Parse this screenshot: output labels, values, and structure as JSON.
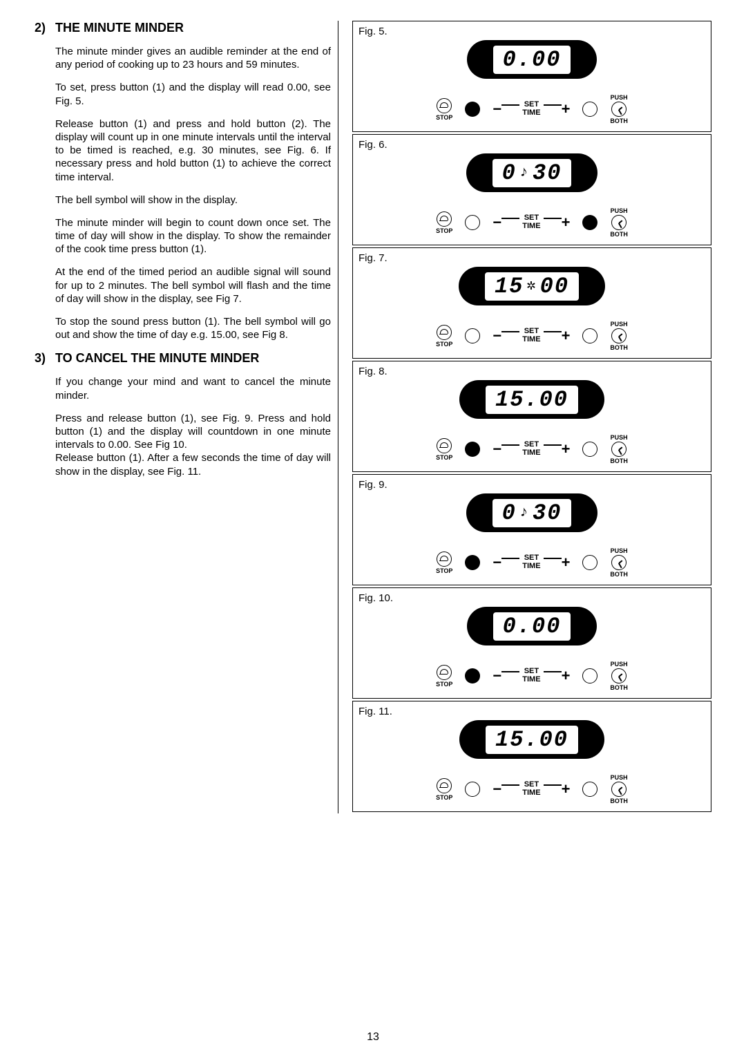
{
  "sections": [
    {
      "num": "2)",
      "title": "THE MINUTE MINDER"
    },
    {
      "num": "3)",
      "title": "TO CANCEL THE MINUTE MINDER"
    }
  ],
  "paras2": [
    "The minute minder gives an audible reminder at the end of any period of cooking up to 23 hours and 59 minutes.",
    "To set, press button (1) and the display will read 0.00, see Fig. 5.",
    "Release button (1) and press and hold button (2). The display will count up in one minute intervals until the interval to be timed is reached, e.g. 30 minutes, see Fig. 6.  If necessary press and hold button (1) to achieve the correct time interval.",
    "The bell symbol will show in the display.",
    "The minute minder will begin to count down once set.  The time of day will show in the display.  To show the remainder of the cook time press button (1).",
    "At the end of the timed period an audible signal will sound for up to 2 minutes.  The bell symbol will flash and the time of day will show in the display, see Fig 7.",
    "To stop the sound press button (1).  The bell symbol will go out and show the time of day e.g. 15.00, see Fig 8."
  ],
  "paras3": [
    "If you change your mind and want to cancel the minute minder.",
    "Press and release button (1), see Fig. 9.  Press and hold button (1) and the display will countdown in one minute intervals to 0.00. See Fig 10.",
    "Release button (1).  After a few seconds the time of day will show in the display, see Fig. 11."
  ],
  "figs": [
    {
      "label": "Fig. 5.",
      "display": "0.00",
      "bell": false,
      "btn1_filled": true,
      "btn2_filled": false
    },
    {
      "label": "Fig. 6.",
      "display": "0 30",
      "bell": true,
      "btn1_filled": false,
      "btn2_filled": true
    },
    {
      "label": "Fig. 7.",
      "display": "15 00",
      "bell": true,
      "btn1_filled": false,
      "btn2_filled": false,
      "bell_mid": true
    },
    {
      "label": "Fig. 8.",
      "display": "15.00",
      "bell": false,
      "btn1_filled": true,
      "btn2_filled": false
    },
    {
      "label": "Fig. 9.",
      "display": "0 30",
      "bell": true,
      "btn1_filled": true,
      "btn2_filled": false
    },
    {
      "label": "Fig. 10.",
      "display": "0.00",
      "bell": false,
      "btn1_filled": true,
      "btn2_filled": false
    },
    {
      "label": "Fig. 11.",
      "display": "15.00",
      "bell": false,
      "btn1_filled": false,
      "btn2_filled": false
    }
  ],
  "ctrl": {
    "stop": "STOP",
    "push": "PUSH",
    "both": "BOTH",
    "set": "SET",
    "time": "TIME",
    "minus": "−",
    "plus": "+",
    "bell_glyph": "♫"
  },
  "pageno": "13",
  "colors": {
    "fg": "#000000",
    "bg": "#ffffff"
  }
}
